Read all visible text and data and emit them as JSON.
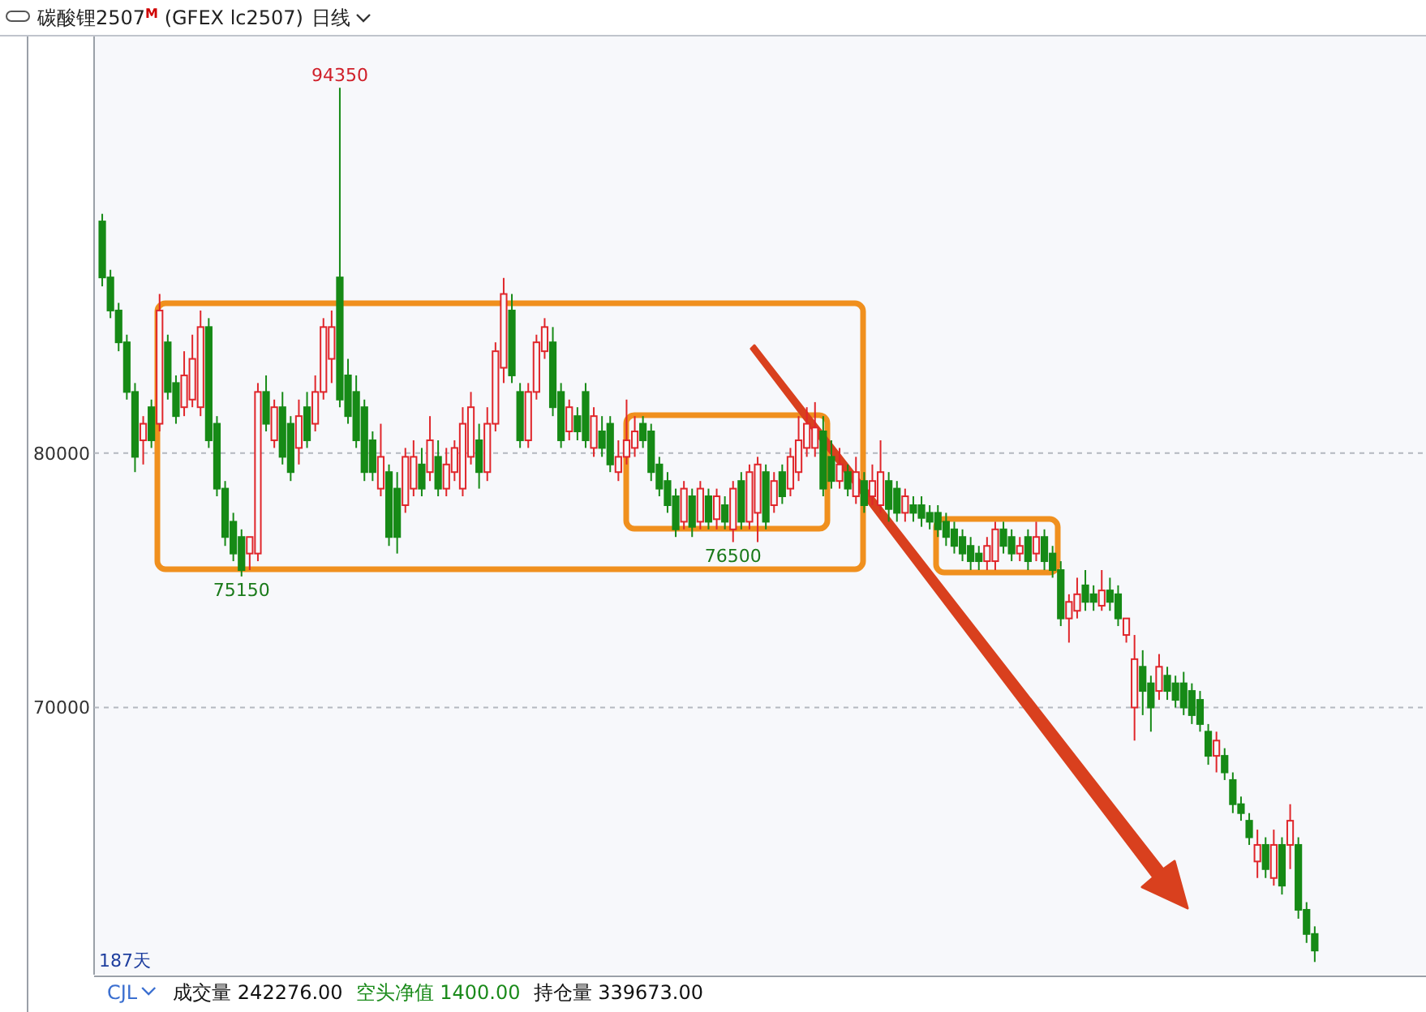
{
  "chart_data": {
    "type": "candlestick",
    "title": "碳酸锂2507$^{M}$ (GFEX lc2507)",
    "subtitle": "日线",
    "ylim": [
      59500,
      96400
    ],
    "yticks": [
      70000,
      80000
    ],
    "grid": "y",
    "tick_labels": "y",
    "annotations": [
      {
        "text": "94350",
        "y": 94350
      },
      {
        "text": "75150",
        "y": 75150
      },
      {
        "text": "76500",
        "y": 76500
      },
      "187天",
      "CJL",
      "成交量 242276.00",
      "空头净值 1400.00",
      "持仓量 339673.00"
    ],
    "categories": [
      null,
      null,
      null,
      null,
      null,
      null,
      null,
      null,
      null,
      null,
      null,
      null,
      null,
      null,
      null,
      null,
      null,
      null,
      null,
      null,
      null,
      null,
      null,
      null,
      null,
      null,
      null,
      null,
      null,
      null,
      null,
      null,
      null,
      null,
      null,
      null,
      null,
      null,
      null,
      null,
      null,
      null,
      null,
      null,
      null,
      null,
      null,
      null,
      null,
      null,
      null,
      null,
      null,
      null,
      null,
      null,
      null,
      null,
      null,
      null,
      null,
      null,
      null,
      null,
      null,
      null,
      null,
      null,
      null,
      null,
      null,
      null,
      null,
      null,
      null,
      null,
      null,
      null,
      null,
      null,
      null,
      null,
      null,
      null,
      null,
      null,
      null,
      null,
      null,
      null,
      null,
      null,
      null,
      null,
      null,
      null,
      null,
      null,
      null,
      null,
      null,
      null,
      null,
      null,
      null,
      null,
      null,
      null,
      null,
      null,
      null,
      null,
      null,
      null,
      null,
      null,
      null,
      null,
      null,
      null,
      null,
      null,
      null,
      null,
      null,
      null,
      null,
      null,
      null,
      null,
      null,
      null,
      null,
      null,
      null,
      null,
      null,
      null,
      null,
      null,
      null,
      null,
      null,
      null,
      null,
      null,
      null,
      null,
      null
    ],
    "ohlc": [
      [
        89100,
        89400,
        86550,
        86900
      ],
      [
        86900,
        87200,
        85300,
        85600
      ],
      [
        85600,
        85900,
        84000,
        84350
      ],
      [
        84350,
        84650,
        82100,
        82400
      ],
      [
        82400,
        82750,
        79250,
        79850
      ],
      [
        80500,
        81450,
        79550,
        81150
      ],
      [
        81800,
        82100,
        80200,
        80500
      ],
      [
        81150,
        86250,
        80850,
        85600
      ],
      [
        84350,
        84650,
        82100,
        82400
      ],
      [
        82750,
        83050,
        81150,
        81450
      ],
      [
        81800,
        84000,
        81450,
        83050
      ],
      [
        82100,
        84650,
        81800,
        83700
      ],
      [
        81800,
        85600,
        81450,
        84950
      ],
      [
        84950,
        85300,
        80200,
        80500
      ],
      [
        81150,
        81450,
        78300,
        78600
      ],
      [
        78600,
        78900,
        76350,
        76700
      ],
      [
        77300,
        77650,
        75750,
        76050
      ],
      [
        76700,
        77000,
        75150,
        75400
      ],
      [
        76050,
        76700,
        75400,
        76700
      ],
      [
        76050,
        82750,
        75750,
        82400
      ],
      [
        82400,
        83050,
        80850,
        81150
      ],
      [
        80500,
        82100,
        80200,
        81800
      ],
      [
        81800,
        82400,
        79550,
        79850
      ],
      [
        81150,
        81450,
        78900,
        79250
      ],
      [
        80200,
        82100,
        79550,
        81450
      ],
      [
        81800,
        82400,
        80200,
        80500
      ],
      [
        81150,
        83050,
        80850,
        82400
      ],
      [
        82400,
        85300,
        82100,
        84950
      ],
      [
        83700,
        85600,
        82750,
        84950
      ],
      [
        86900,
        94350,
        81800,
        82100
      ],
      [
        83050,
        83700,
        81150,
        81450
      ],
      [
        82400,
        83050,
        80200,
        80500
      ],
      [
        81800,
        82100,
        78900,
        79250
      ],
      [
        80500,
        80850,
        78900,
        79250
      ],
      [
        78600,
        81150,
        78300,
        79850
      ],
      [
        79250,
        79550,
        76350,
        76700
      ],
      [
        78600,
        79250,
        76050,
        76700
      ],
      [
        77950,
        80200,
        77650,
        79850
      ],
      [
        78600,
        80500,
        78300,
        79850
      ],
      [
        79550,
        80200,
        78300,
        78600
      ],
      [
        79250,
        81450,
        78900,
        80500
      ],
      [
        79850,
        80500,
        78300,
        78600
      ],
      [
        78600,
        80200,
        78300,
        79550
      ],
      [
        79250,
        80500,
        78900,
        80200
      ],
      [
        78600,
        81800,
        78300,
        81150
      ],
      [
        79850,
        82400,
        79550,
        81800
      ],
      [
        80500,
        81150,
        78600,
        79250
      ],
      [
        79250,
        81800,
        78900,
        81150
      ],
      [
        81150,
        84350,
        80850,
        84000
      ],
      [
        83350,
        86880,
        82750,
        86250
      ],
      [
        85600,
        86250,
        82750,
        83050
      ],
      [
        82400,
        82750,
        80200,
        80500
      ],
      [
        80500,
        82750,
        80200,
        82400
      ],
      [
        82400,
        84650,
        82100,
        84350
      ],
      [
        84000,
        85300,
        83700,
        84950
      ],
      [
        84350,
        84950,
        81450,
        81800
      ],
      [
        82400,
        82750,
        80200,
        80500
      ],
      [
        80850,
        82100,
        80500,
        81800
      ],
      [
        81450,
        81800,
        80500,
        80850
      ],
      [
        82400,
        82750,
        80200,
        80500
      ],
      [
        80200,
        81800,
        79850,
        81450
      ],
      [
        80850,
        81450,
        79850,
        80200
      ],
      [
        81150,
        81450,
        79250,
        79550
      ],
      [
        79250,
        80500,
        78900,
        79850
      ],
      [
        79850,
        82100,
        79550,
        80500
      ],
      [
        80200,
        81450,
        79850,
        80850
      ],
      [
        81150,
        81450,
        80200,
        80500
      ],
      [
        80850,
        81150,
        78900,
        79250
      ],
      [
        79550,
        79850,
        78300,
        78600
      ],
      [
        78900,
        79250,
        77650,
        77950
      ],
      [
        78300,
        78600,
        76700,
        77000
      ],
      [
        77300,
        78900,
        77000,
        78600
      ],
      [
        78300,
        78600,
        76700,
        77100
      ],
      [
        77300,
        78900,
        77000,
        78600
      ],
      [
        78300,
        78600,
        77000,
        77300
      ],
      [
        77400,
        78600,
        77000,
        78300
      ],
      [
        77950,
        78300,
        77000,
        77300
      ],
      [
        77000,
        78900,
        76500,
        78600
      ],
      [
        78900,
        79250,
        77000,
        77300
      ],
      [
        77300,
        79550,
        77000,
        79250
      ],
      [
        77650,
        79850,
        76500,
        79550
      ],
      [
        79250,
        79550,
        77000,
        77300
      ],
      [
        77950,
        79250,
        77650,
        78900
      ],
      [
        79250,
        79550,
        78000,
        78300
      ],
      [
        78600,
        80200,
        78300,
        79850
      ],
      [
        79250,
        81450,
        78900,
        80500
      ],
      [
        80200,
        81800,
        79850,
        81150
      ],
      [
        80200,
        82000,
        79850,
        81000
      ],
      [
        80850,
        81450,
        78300,
        78600
      ],
      [
        79850,
        80500,
        78600,
        78900
      ],
      [
        78900,
        80200,
        78600,
        79550
      ],
      [
        79250,
        79550,
        78300,
        78600
      ],
      [
        78300,
        79850,
        78000,
        79250
      ],
      [
        78900,
        79250,
        77650,
        77950
      ],
      [
        78300,
        79550,
        77950,
        78900
      ],
      [
        77950,
        80500,
        77650,
        79250
      ],
      [
        78900,
        79250,
        77300,
        77800
      ],
      [
        78600,
        78900,
        77300,
        77650
      ],
      [
        77650,
        78600,
        77300,
        78300
      ],
      [
        77950,
        78300,
        77300,
        77650
      ],
      [
        77950,
        78300,
        77100,
        77450
      ],
      [
        77650,
        77950,
        77000,
        77300
      ],
      [
        77650,
        77950,
        76700,
        77000
      ],
      [
        77300,
        77650,
        76350,
        76700
      ],
      [
        77000,
        77300,
        76050,
        76350
      ],
      [
        76700,
        77000,
        75750,
        76050
      ],
      [
        76350,
        76700,
        75400,
        75750
      ],
      [
        76050,
        76350,
        75400,
        75750
      ],
      [
        75750,
        76700,
        75400,
        76350
      ],
      [
        75750,
        77300,
        75400,
        77000
      ],
      [
        77000,
        77300,
        76050,
        76350
      ],
      [
        76700,
        77000,
        75750,
        76050
      ],
      [
        76050,
        76700,
        75750,
        76350
      ],
      [
        76700,
        77000,
        75400,
        75750
      ],
      [
        76050,
        77300,
        75750,
        76700
      ],
      [
        76700,
        77000,
        75400,
        75750
      ],
      [
        76050,
        76350,
        75100,
        75400
      ],
      [
        75400,
        75750,
        73200,
        73500
      ],
      [
        73500,
        74450,
        72550,
        74150
      ],
      [
        73800,
        75100,
        73500,
        74450
      ],
      [
        74800,
        75400,
        73800,
        74150
      ],
      [
        74450,
        74800,
        73800,
        74150
      ],
      [
        74000,
        75400,
        73800,
        74600
      ],
      [
        74600,
        75100,
        73800,
        74150
      ],
      [
        74450,
        74800,
        73200,
        73500
      ],
      [
        72850,
        73500,
        72550,
        73500
      ],
      [
        70000,
        72850,
        68700,
        71900
      ],
      [
        71600,
        72250,
        69700,
        70650
      ],
      [
        70950,
        71250,
        69050,
        70000
      ],
      [
        70650,
        72100,
        70300,
        71600
      ],
      [
        71250,
        71600,
        70300,
        70650
      ],
      [
        70950,
        71250,
        70000,
        70300
      ],
      [
        70950,
        71400,
        69700,
        70000
      ],
      [
        70650,
        70950,
        69350,
        69700
      ],
      [
        70300,
        70650,
        69050,
        69350
      ],
      [
        69050,
        69350,
        67750,
        68100
      ],
      [
        68100,
        69050,
        67450,
        68700
      ],
      [
        68100,
        68400,
        67150,
        67450
      ],
      [
        67150,
        67450,
        65850,
        66200
      ],
      [
        66200,
        66500,
        65550,
        65850
      ],
      [
        65550,
        65850,
        64600,
        64900
      ],
      [
        63950,
        65200,
        63300,
        64600
      ],
      [
        64600,
        64900,
        63300,
        63650
      ],
      [
        63300,
        65200,
        63000,
        64600
      ],
      [
        64600,
        64900,
        62650,
        63000
      ],
      [
        64600,
        66200,
        63650,
        65550
      ],
      [
        64600,
        64900,
        61700,
        62050
      ],
      [
        62050,
        62350,
        60750,
        61100
      ],
      [
        61100,
        61400,
        60000,
        60450
      ]
    ]
  }
}
